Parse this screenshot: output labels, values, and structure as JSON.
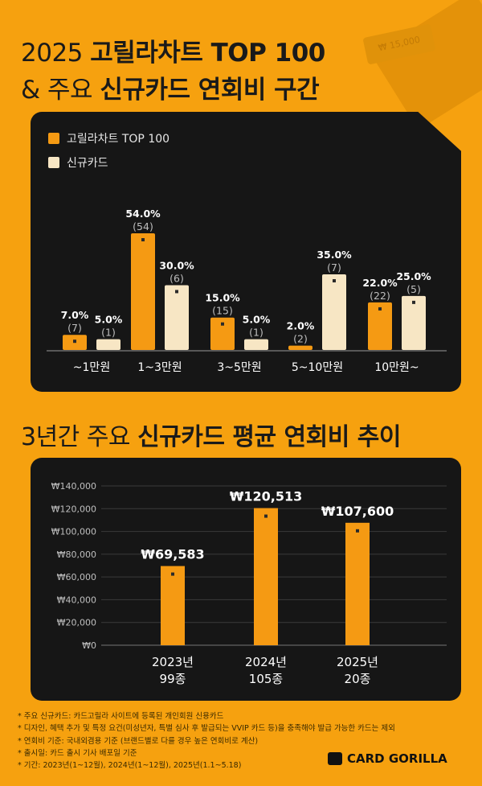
{
  "header": {
    "line1_a": "2025 ",
    "line1_b": "고릴라차트 TOP 100",
    "line2_a": "& 주요 ",
    "line2_b": "신규카드 연회비 구간"
  },
  "bg_tag": "₩ 15,000",
  "section2_title": {
    "a": "3년간 주요 ",
    "b": "신규카드 평균 연회비 추이"
  },
  "colors": {
    "background": "#f6a10f",
    "panel": "#161616",
    "top100": "#f59a13",
    "new_card": "#f7e6c4"
  },
  "chart_data": [
    {
      "type": "bar",
      "legend": [
        "고릴라차트 TOP 100",
        "신규카드"
      ],
      "legend_position": "top-left",
      "categories": [
        "~1만원",
        "1~3만원",
        "3~5만원",
        "5~10만원",
        "10만원~"
      ],
      "series": [
        {
          "name": "고릴라차트 TOP 100",
          "values": [
            7.0,
            54.0,
            15.0,
            2.0,
            22.0
          ],
          "counts": [
            7,
            54,
            15,
            2,
            22
          ]
        },
        {
          "name": "신규카드",
          "values": [
            5.0,
            30.0,
            5.0,
            35.0,
            25.0
          ],
          "counts": [
            1,
            6,
            1,
            7,
            5
          ]
        }
      ],
      "value_labels": {
        "top100": [
          "7.0%",
          "54.0%",
          "15.0%",
          "2.0%",
          "22.0%"
        ],
        "new_card": [
          "5.0%",
          "30.0%",
          "5.0%",
          "35.0%",
          "25.0%"
        ]
      },
      "count_labels": {
        "top100": [
          "(7)",
          "(54)",
          "(15)",
          "(2)",
          "(22)"
        ],
        "new_card": [
          "(1)",
          "(6)",
          "(1)",
          "(7)",
          "(5)"
        ]
      },
      "ylim": [
        0,
        54
      ],
      "grid": false
    },
    {
      "type": "bar",
      "categories": [
        "2023년",
        "2024년",
        "2025년"
      ],
      "sublabels": [
        "99종",
        "105종",
        "20종"
      ],
      "values": [
        69583,
        120513,
        107600
      ],
      "value_labels": [
        "₩69,583",
        "₩120,513",
        "₩107,600"
      ],
      "yticks": [
        "₩0",
        "₩20,000",
        "₩40,000",
        "₩60,000",
        "₩80,000",
        "₩100,000",
        "₩120,000",
        "₩140,000"
      ],
      "ylim": [
        0,
        140000
      ],
      "grid": true
    }
  ],
  "footnotes": [
    "* 주요 신규카드: 카드고릴라 사이트에 등록된 개인회원 신용카드",
    "* 디자인, 혜택 추가 및 특정 요건(미성년자, 특별 심사 후 발급되는 VVIP 카드 등)을 충족해야 발급 가능한 카드는 제외",
    "* 연회비 기준: 국내외겸용 기준 (브랜드별로 다를 경우 높은 연회비로 계산)",
    "* 출시일: 카드 출시 기사 배포일 기준",
    "* 기간: 2023년(1~12월), 2024년(1~12월), 2025년(1.1~5.18)"
  ],
  "brand": "CARD GORILLA"
}
